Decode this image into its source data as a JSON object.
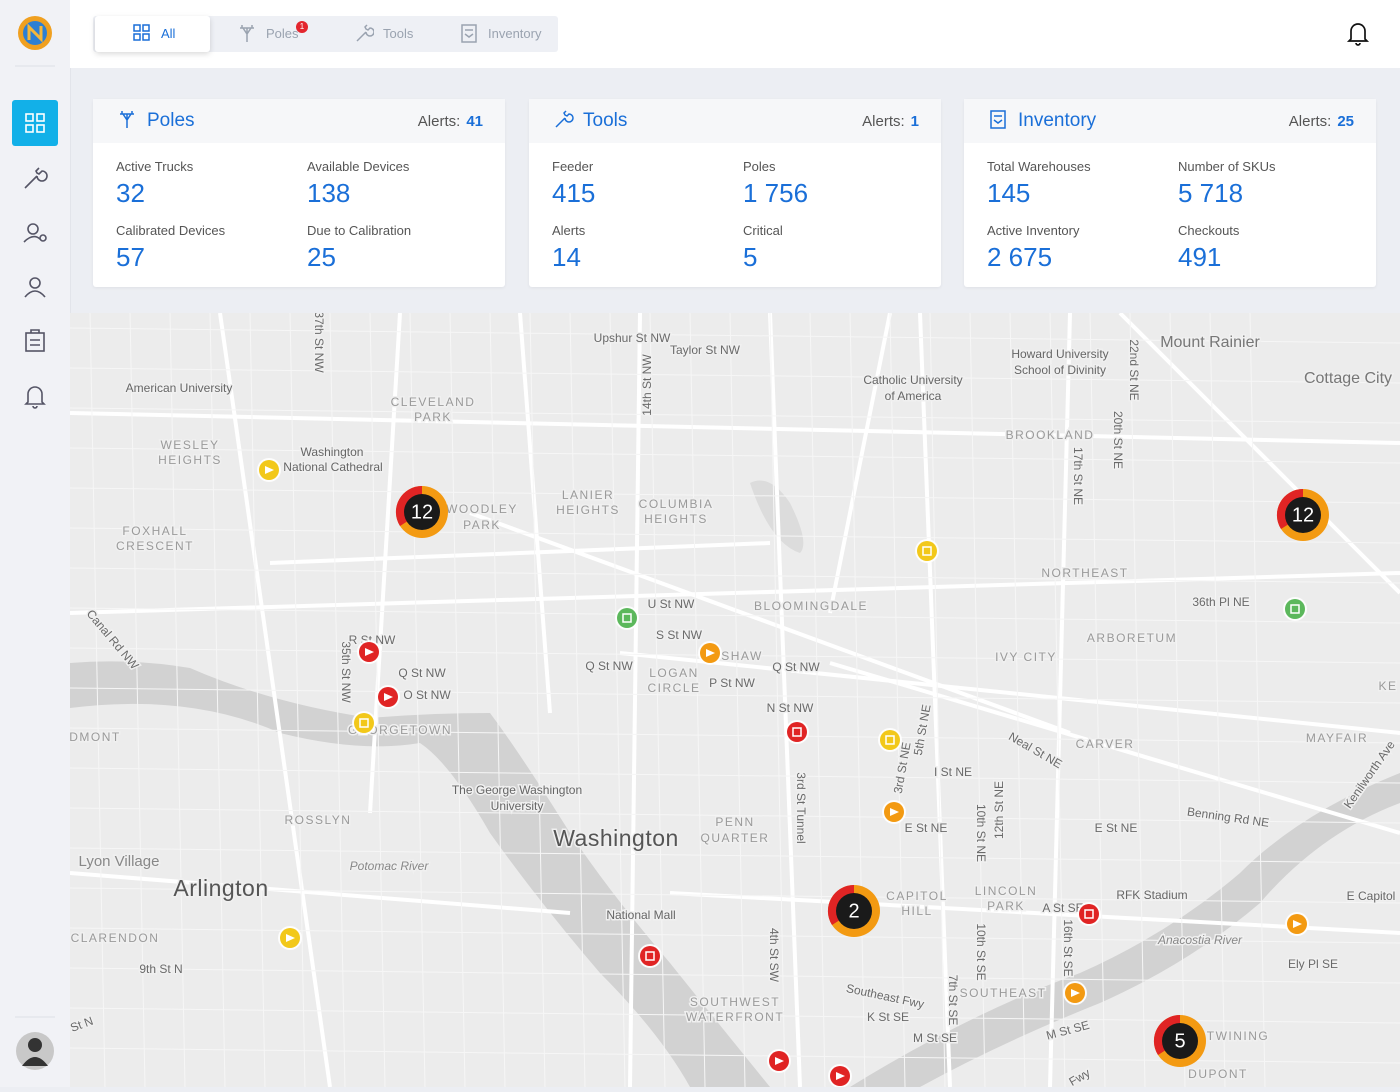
{
  "nav": {
    "tabs": [
      {
        "label": "All"
      },
      {
        "label": "Poles",
        "badge": "1"
      },
      {
        "label": "Tools"
      },
      {
        "label": "Inventory"
      }
    ]
  },
  "cards": [
    {
      "title": "Poles",
      "alerts_label": "Alerts:",
      "alerts": "41",
      "stats": [
        {
          "label": "Active Trucks",
          "value": "32"
        },
        {
          "label": "Available Devices",
          "value": "138"
        },
        {
          "label": "Calibrated Devices",
          "value": "57"
        },
        {
          "label": "Due to Calibration",
          "value": "25"
        }
      ]
    },
    {
      "title": "Tools",
      "alerts_label": "Alerts:",
      "alerts": "1",
      "stats": [
        {
          "label": "Feeder",
          "value": "415"
        },
        {
          "label": "Poles",
          "value": "1 756"
        },
        {
          "label": "Alerts",
          "value": "14"
        },
        {
          "label": "Critical",
          "value": "5"
        }
      ]
    },
    {
      "title": "Inventory",
      "alerts_label": "Alerts:",
      "alerts": "25",
      "stats": [
        {
          "label": "Total Warehouses",
          "value": "145"
        },
        {
          "label": "Number of SKUs",
          "value": "5 718"
        },
        {
          "label": "Active Inventory",
          "value": "2 675"
        },
        {
          "label": "Checkouts",
          "value": "491"
        }
      ]
    }
  ],
  "map": {
    "labels": [
      "Upshur St NW",
      "Taylor St NW",
      "14th St NW",
      "37th St NW",
      "American University",
      "CLEVELAND",
      "PARK",
      "WESLEY",
      "HEIGHTS",
      "Washington",
      "National Cathedral",
      "FOXHALL",
      "CRESCENT",
      "WOODLEY",
      "PARK",
      "LANIER",
      "HEIGHTS",
      "COLUMBIA",
      "HEIGHTS",
      "Catholic University",
      "of America",
      "Howard University",
      "School of Divinity",
      "22nd St NE",
      "20th St NE",
      "17th St NE",
      "Mount Rainier",
      "Cottage City",
      "BROOKLAND",
      "NORTHEAST",
      "36th Pl NE",
      "ARBORETUM",
      "IVY CITY",
      "BLOOMINGDALE",
      "U St NW",
      "S St NW",
      "SHAW",
      "Q St NW",
      "Q St NW",
      "LOGAN",
      "CIRCLE",
      "P St NW",
      "Canal Rd NW",
      "R St NW",
      "35th St NW",
      "Q St NW",
      "O St NW",
      "GEORGETOWN",
      "N St NW",
      "Neal St NE",
      "CARVER",
      "MAYFAIR",
      "Kenilworth Ave",
      "I St NE",
      "3rd St Tunnel",
      "5th St NE",
      "3rd St NE",
      "E St NE",
      "10th St NE",
      "12th St NE",
      "E St NE",
      "Benning Rd NE",
      "The George Washington",
      "University",
      "ROSSLYN",
      "Washington",
      "PENN",
      "QUARTER",
      "Lyon Village",
      "Potomac River",
      "Arlington",
      "CAPITOL",
      "HILL",
      "LINCOLN",
      "PARK",
      "A St SE",
      "RFK Stadium",
      "E Capitol",
      "Anacostia River",
      "10th St SE",
      "16th St SE",
      "CLARENDON",
      "9th St N",
      "National Mall",
      "4th St SW",
      "Southeast Fwy",
      "7th St SE",
      "SOUTHEAST",
      "Ely Pl SE",
      "SOUTHWEST",
      "WATERFRONT",
      "K St SE",
      "M St SE",
      "M St SE",
      "TWINING",
      "DUPONT",
      "Fwy",
      "DMONT",
      "KE",
      "St N"
    ],
    "clusters": [
      {
        "count": "12"
      },
      {
        "count": "12"
      },
      {
        "count": "2"
      },
      {
        "count": "5"
      }
    ]
  }
}
